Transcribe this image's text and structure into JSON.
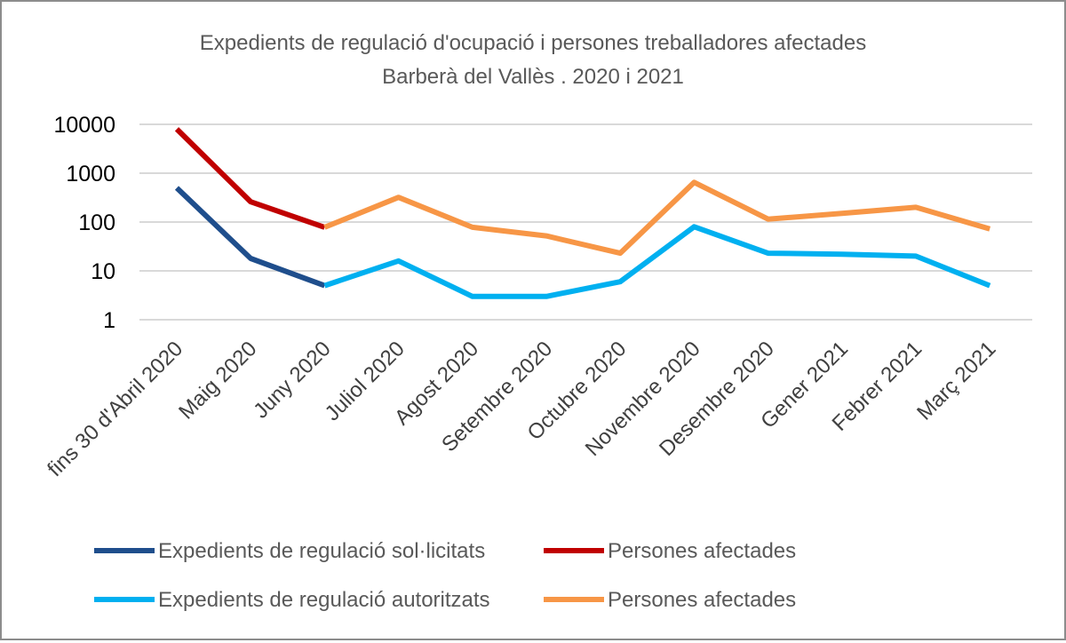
{
  "chart_data": {
    "type": "line",
    "title": "Expedients de regulació d'ocupació i persones treballadores afectades",
    "subtitle": "Barberà del Vallès . 2020 i 2021",
    "y_scale": "log",
    "ylim": [
      1,
      10000
    ],
    "y_ticks": [
      "10000",
      "1000",
      "100",
      "10",
      "1"
    ],
    "y_tick_values": [
      10000,
      1000,
      100,
      10,
      1
    ],
    "grid": true,
    "legend_position": "bottom",
    "categories": [
      "fins 30 d'Abril 2020",
      "Maig 2020",
      "Juny 2020",
      "Juliol 2020",
      "Agost 2020",
      "Setembre 2020",
      "Octubre 2020",
      "Novembre 2020",
      "Desembre 2020",
      "Gener 2021",
      "Febrer 2021",
      "Març 2021"
    ],
    "series": [
      {
        "name": "Expedients de regulació sol·licitats",
        "color": "#1f4e8c",
        "values": [
          500,
          18,
          5,
          null,
          null,
          null,
          null,
          null,
          null,
          null,
          null,
          null
        ]
      },
      {
        "name": "Persones afectades",
        "color": "#c00000",
        "values": [
          8000,
          260,
          78,
          null,
          null,
          null,
          null,
          null,
          null,
          null,
          null,
          null
        ]
      },
      {
        "name": "Expedients de regulació autoritzats",
        "color": "#00b0f0",
        "values": [
          null,
          null,
          5,
          16,
          3,
          3,
          6,
          80,
          23,
          22,
          20,
          5
        ]
      },
      {
        "name": "Persones afectades",
        "color": "#f79646",
        "values": [
          null,
          null,
          78,
          320,
          78,
          52,
          23,
          650,
          115,
          150,
          200,
          72
        ]
      }
    ]
  }
}
